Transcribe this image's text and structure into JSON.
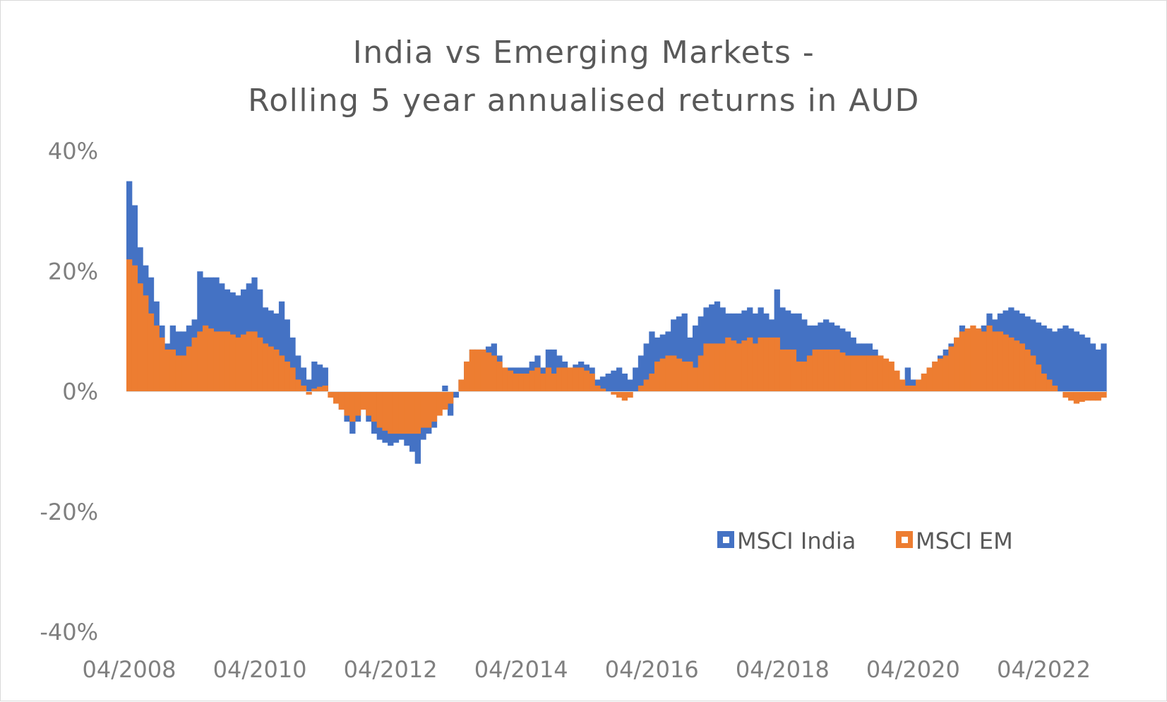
{
  "chart_data": {
    "type": "bar",
    "title_lines": [
      "India vs Emerging Markets -",
      "Rolling 5 year annualised returns in AUD"
    ],
    "xlabel": "",
    "ylabel": "",
    "ylim": [
      -40,
      40
    ],
    "y_ticks": [
      "40%",
      "20%",
      "0%",
      "-20%",
      "-40%"
    ],
    "y_tick_values": [
      40,
      20,
      0,
      -20,
      -40
    ],
    "x_ticks": [
      "04/2008",
      "04/2010",
      "04/2012",
      "04/2014",
      "04/2016",
      "04/2018",
      "04/2020",
      "04/2022"
    ],
    "x_start": "04/2008",
    "x_end": "03/2023",
    "grid": false,
    "legend_position": "bottom-right",
    "colors": {
      "MSCI India": "#4472c4",
      "MSCI EM": "#ed7d31"
    },
    "anchors": {
      "MSCI India": [
        [
          "04/2008",
          35
        ],
        [
          "05/2008",
          31
        ],
        [
          "06/2008",
          24
        ],
        [
          "07/2008",
          21
        ],
        [
          "08/2008",
          19
        ],
        [
          "09/2008",
          15
        ],
        [
          "10/2008",
          11
        ],
        [
          "11/2008",
          8
        ],
        [
          "12/2008",
          11
        ],
        [
          "01/2009",
          10
        ],
        [
          "02/2009",
          10
        ],
        [
          "04/2009",
          12
        ],
        [
          "05/2009",
          20
        ],
        [
          "06/2009",
          19
        ],
        [
          "08/2009",
          19
        ],
        [
          "10/2009",
          17
        ],
        [
          "12/2009",
          16
        ],
        [
          "02/2010",
          18
        ],
        [
          "03/2010",
          19
        ],
        [
          "04/2010",
          17
        ],
        [
          "05/2010",
          14
        ],
        [
          "07/2010",
          13
        ],
        [
          "08/2010",
          15
        ],
        [
          "09/2010",
          12
        ],
        [
          "10/2010",
          9
        ],
        [
          "11/2010",
          6
        ],
        [
          "12/2010",
          4
        ],
        [
          "01/2011",
          2
        ],
        [
          "02/2011",
          5
        ],
        [
          "04/2011",
          4
        ],
        [
          "05/2011",
          0
        ],
        [
          "06/2011",
          -1
        ],
        [
          "07/2011",
          -3
        ],
        [
          "08/2011",
          -5
        ],
        [
          "09/2011",
          -7
        ],
        [
          "10/2011",
          -5
        ],
        [
          "11/2011",
          -3
        ],
        [
          "01/2012",
          -7
        ],
        [
          "02/2012",
          -8
        ],
        [
          "04/2012",
          -9
        ],
        [
          "06/2012",
          -8
        ],
        [
          "08/2012",
          -10
        ],
        [
          "09/2012",
          -12
        ],
        [
          "10/2012",
          -8
        ],
        [
          "11/2012",
          -7
        ],
        [
          "12/2012",
          -6
        ],
        [
          "01/2013",
          -3
        ],
        [
          "02/2013",
          1
        ],
        [
          "03/2013",
          -4
        ],
        [
          "04/2013",
          -1
        ],
        [
          "05/2013",
          2
        ],
        [
          "06/2013",
          5
        ],
        [
          "07/2013",
          7
        ],
        [
          "09/2013",
          7
        ],
        [
          "11/2013",
          8
        ],
        [
          "12/2013",
          6
        ],
        [
          "01/2014",
          4
        ],
        [
          "03/2014",
          4
        ],
        [
          "05/2014",
          4
        ],
        [
          "07/2014",
          6
        ],
        [
          "08/2014",
          4
        ],
        [
          "09/2014",
          7
        ],
        [
          "10/2014",
          7
        ],
        [
          "11/2014",
          6
        ],
        [
          "01/2015",
          4
        ],
        [
          "03/2015",
          5
        ],
        [
          "05/2015",
          4
        ],
        [
          "06/2015",
          2
        ],
        [
          "08/2015",
          3
        ],
        [
          "10/2015",
          4
        ],
        [
          "11/2015",
          3
        ],
        [
          "12/2015",
          2
        ],
        [
          "01/2016",
          4
        ],
        [
          "03/2016",
          8
        ],
        [
          "04/2016",
          10
        ],
        [
          "05/2016",
          9
        ],
        [
          "07/2016",
          10
        ],
        [
          "08/2016",
          12
        ],
        [
          "10/2016",
          13
        ],
        [
          "11/2016",
          9
        ],
        [
          "12/2016",
          11
        ],
        [
          "02/2017",
          14
        ],
        [
          "04/2017",
          15
        ],
        [
          "05/2017",
          14
        ],
        [
          "06/2017",
          13
        ],
        [
          "08/2017",
          13
        ],
        [
          "10/2017",
          14
        ],
        [
          "11/2017",
          13
        ],
        [
          "12/2017",
          14
        ],
        [
          "01/2018",
          13
        ],
        [
          "02/2018",
          12
        ],
        [
          "03/2018",
          17
        ],
        [
          "04/2018",
          14
        ],
        [
          "06/2018",
          13
        ],
        [
          "07/2018",
          13
        ],
        [
          "08/2018",
          12
        ],
        [
          "09/2018",
          11
        ],
        [
          "10/2018",
          11
        ],
        [
          "12/2018",
          12
        ],
        [
          "02/2019",
          11
        ],
        [
          "04/2019",
          10
        ],
        [
          "06/2019",
          8
        ],
        [
          "08/2019",
          8
        ],
        [
          "10/2019",
          6
        ],
        [
          "12/2019",
          2
        ],
        [
          "02/2020",
          1
        ],
        [
          "03/2020",
          4
        ],
        [
          "04/2020",
          2
        ],
        [
          "05/2020",
          2
        ],
        [
          "06/2020",
          3
        ],
        [
          "08/2020",
          5
        ],
        [
          "10/2020",
          7
        ],
        [
          "12/2020",
          9
        ],
        [
          "01/2021",
          11
        ],
        [
          "03/2021",
          10
        ],
        [
          "05/2021",
          11
        ],
        [
          "06/2021",
          13
        ],
        [
          "07/2021",
          12
        ],
        [
          "08/2021",
          13
        ],
        [
          "10/2021",
          14
        ],
        [
          "12/2021",
          13
        ],
        [
          "02/2022",
          12
        ],
        [
          "04/2022",
          11
        ],
        [
          "06/2022",
          10
        ],
        [
          "08/2022",
          11
        ],
        [
          "10/2022",
          10
        ],
        [
          "12/2022",
          9
        ],
        [
          "02/2023",
          7
        ],
        [
          "03/2023",
          8
        ]
      ],
      "MSCI EM": [
        [
          "04/2008",
          22
        ],
        [
          "05/2008",
          21
        ],
        [
          "06/2008",
          18
        ],
        [
          "07/2008",
          16
        ],
        [
          "08/2008",
          13
        ],
        [
          "09/2008",
          11
        ],
        [
          "10/2008",
          9
        ],
        [
          "11/2008",
          7
        ],
        [
          "12/2008",
          7
        ],
        [
          "01/2009",
          6
        ],
        [
          "02/2009",
          6
        ],
        [
          "04/2009",
          9
        ],
        [
          "05/2009",
          10
        ],
        [
          "06/2009",
          11
        ],
        [
          "08/2009",
          10
        ],
        [
          "10/2009",
          10
        ],
        [
          "12/2009",
          9
        ],
        [
          "02/2010",
          10
        ],
        [
          "03/2010",
          10
        ],
        [
          "04/2010",
          9
        ],
        [
          "05/2010",
          8
        ],
        [
          "07/2010",
          7
        ],
        [
          "08/2010",
          6
        ],
        [
          "09/2010",
          5
        ],
        [
          "10/2010",
          4
        ],
        [
          "11/2010",
          2
        ],
        [
          "12/2010",
          1
        ],
        [
          "01/2011",
          -0.5
        ],
        [
          "02/2011",
          0.5
        ],
        [
          "04/2011",
          1
        ],
        [
          "05/2011",
          -1
        ],
        [
          "06/2011",
          -2
        ],
        [
          "07/2011",
          -3
        ],
        [
          "08/2011",
          -4
        ],
        [
          "09/2011",
          -5
        ],
        [
          "10/2011",
          -4
        ],
        [
          "11/2011",
          -3
        ],
        [
          "01/2012",
          -5
        ],
        [
          "02/2012",
          -6
        ],
        [
          "04/2012",
          -7
        ],
        [
          "06/2012",
          -7
        ],
        [
          "08/2012",
          -7
        ],
        [
          "09/2012",
          -7
        ],
        [
          "10/2012",
          -6
        ],
        [
          "11/2012",
          -6
        ],
        [
          "12/2012",
          -5
        ],
        [
          "01/2013",
          -4
        ],
        [
          "02/2013",
          -3
        ],
        [
          "03/2013",
          -2
        ],
        [
          "04/2013",
          0
        ],
        [
          "05/2013",
          2
        ],
        [
          "06/2013",
          5
        ],
        [
          "07/2013",
          7
        ],
        [
          "09/2013",
          7
        ],
        [
          "11/2013",
          6
        ],
        [
          "12/2013",
          5
        ],
        [
          "01/2014",
          4
        ],
        [
          "03/2014",
          3
        ],
        [
          "05/2014",
          3
        ],
        [
          "07/2014",
          4
        ],
        [
          "08/2014",
          3
        ],
        [
          "09/2014",
          4
        ],
        [
          "10/2014",
          3
        ],
        [
          "11/2014",
          4
        ],
        [
          "01/2015",
          4
        ],
        [
          "03/2015",
          4
        ],
        [
          "05/2015",
          3
        ],
        [
          "06/2015",
          1
        ],
        [
          "08/2015",
          0
        ],
        [
          "10/2015",
          -1
        ],
        [
          "11/2015",
          -1.5
        ],
        [
          "12/2015",
          -1
        ],
        [
          "01/2016",
          0
        ],
        [
          "03/2016",
          2
        ],
        [
          "04/2016",
          3
        ],
        [
          "05/2016",
          5
        ],
        [
          "07/2016",
          6
        ],
        [
          "08/2016",
          6
        ],
        [
          "10/2016",
          5
        ],
        [
          "11/2016",
          5
        ],
        [
          "12/2016",
          4
        ],
        [
          "02/2017",
          8
        ],
        [
          "04/2017",
          8
        ],
        [
          "05/2017",
          8
        ],
        [
          "06/2017",
          9
        ],
        [
          "08/2017",
          8
        ],
        [
          "10/2017",
          9
        ],
        [
          "11/2017",
          8
        ],
        [
          "12/2017",
          9
        ],
        [
          "01/2018",
          9
        ],
        [
          "02/2018",
          9
        ],
        [
          "03/2018",
          9
        ],
        [
          "04/2018",
          7
        ],
        [
          "06/2018",
          7
        ],
        [
          "07/2018",
          5
        ],
        [
          "08/2018",
          5
        ],
        [
          "09/2018",
          6
        ],
        [
          "10/2018",
          7
        ],
        [
          "12/2018",
          7
        ],
        [
          "02/2019",
          7
        ],
        [
          "04/2019",
          6
        ],
        [
          "06/2019",
          6
        ],
        [
          "08/2019",
          6
        ],
        [
          "10/2019",
          6
        ],
        [
          "12/2019",
          5
        ],
        [
          "02/2020",
          2
        ],
        [
          "03/2020",
          1
        ],
        [
          "04/2020",
          1
        ],
        [
          "05/2020",
          2
        ],
        [
          "06/2020",
          3
        ],
        [
          "08/2020",
          5
        ],
        [
          "10/2020",
          6
        ],
        [
          "12/2020",
          9
        ],
        [
          "01/2021",
          10
        ],
        [
          "03/2021",
          11
        ],
        [
          "05/2021",
          10
        ],
        [
          "06/2021",
          11
        ],
        [
          "07/2021",
          10
        ],
        [
          "08/2021",
          10
        ],
        [
          "10/2021",
          9
        ],
        [
          "12/2021",
          8
        ],
        [
          "02/2022",
          6
        ],
        [
          "04/2022",
          3
        ],
        [
          "06/2022",
          1
        ],
        [
          "08/2022",
          -1
        ],
        [
          "10/2022",
          -2
        ],
        [
          "12/2022",
          -1.5
        ],
        [
          "02/2023",
          -1.5
        ],
        [
          "03/2023",
          -1
        ]
      ]
    }
  }
}
